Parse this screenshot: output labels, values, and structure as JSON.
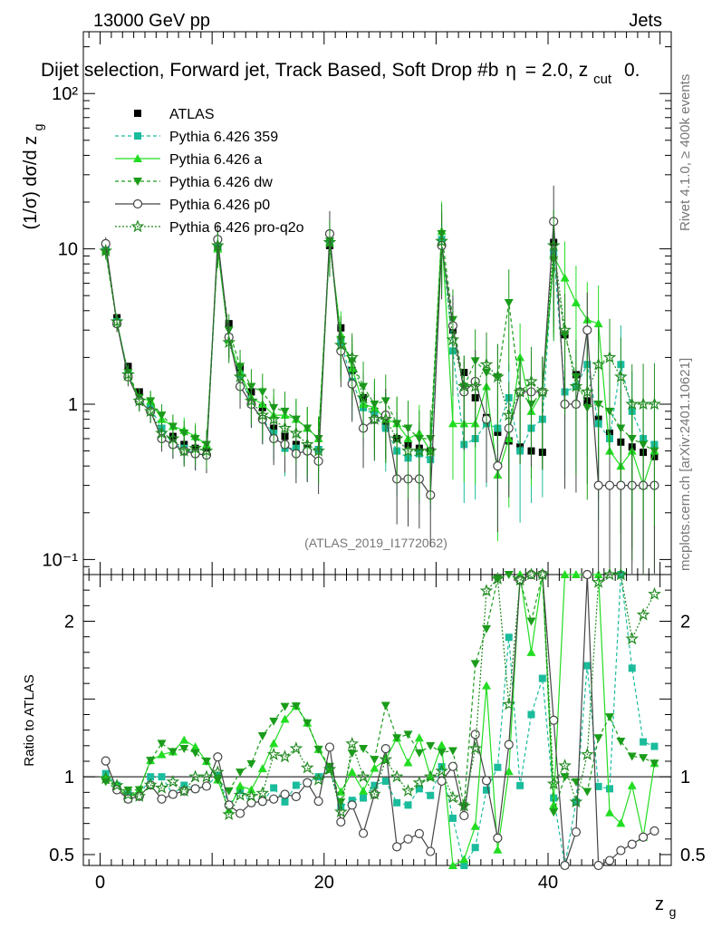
{
  "header": {
    "energy": "13000 GeV pp",
    "category": "Jets",
    "selection": "Dijet selection, Forward jet, Track Based, Soft Drop #b",
    "selection_tail": "= 2.0, z",
    "selection_sub": "cut",
    "selection_end": "0.",
    "rivet_label": "Rivet 4.1.0, ≥ 400k events",
    "mcplots_label": "mcplots.cern.ch [arXiv:2401.10621]",
    "analysis_id": "(ATLAS_2019_I1772062)"
  },
  "chart_data": {
    "type": "line",
    "title": "Dijet selection, Forward jet, Track Based, Soft Drop",
    "xlabel": "z",
    "xlabel_sub": "g",
    "ylabel": "(1/σ) dσ/d z",
    "ylabel_sub": "g",
    "ratio_ylabel": "Ratio to ATLAS",
    "xlim": [
      -1.5,
      51
    ],
    "ylim": [
      0.08,
      250
    ],
    "ratio_ylim": [
      0.43,
      2.3
    ],
    "yscale": "log",
    "x_ticks": [
      "0",
      "20",
      "40"
    ],
    "y_ticks": [
      "10⁻¹",
      "1",
      "10",
      "10²"
    ],
    "ratio_ticks": [
      "0.5",
      "1",
      "2"
    ],
    "x": [
      0.5,
      1.5,
      2.5,
      3.5,
      4.5,
      5.5,
      6.5,
      7.5,
      8.5,
      9.5,
      10.5,
      11.5,
      12.5,
      13.5,
      14.5,
      15.5,
      16.5,
      17.5,
      18.5,
      19.5,
      20.5,
      21.5,
      22.5,
      23.5,
      24.5,
      25.5,
      26.5,
      27.5,
      28.5,
      29.5,
      30.5,
      31.5,
      32.5,
      33.5,
      34.5,
      35.5,
      36.5,
      37.5,
      38.5,
      39.5,
      40.5,
      41.5,
      42.5,
      43.5,
      44.5,
      45.5,
      46.5,
      47.5,
      48.5,
      49.5
    ],
    "series": [
      {
        "name": "ATLAS",
        "color": "#000000",
        "values": [
          9.8,
          3.6,
          1.75,
          1.2,
          0.95,
          0.7,
          0.62,
          0.55,
          0.52,
          0.5,
          10.2,
          3.3,
          1.7,
          1.2,
          0.95,
          0.7,
          0.62,
          0.55,
          0.52,
          0.51,
          10.5,
          3.1,
          1.65,
          1.1,
          0.9,
          0.72,
          0.6,
          0.55,
          0.52,
          0.5,
          10.8,
          3.0,
          1.6,
          1.1,
          0.82,
          0.66,
          0.58,
          0.53,
          0.5,
          0.49,
          11.0,
          2.8,
          1.55,
          1.05,
          0.8,
          0.65,
          0.57,
          0.53,
          0.49,
          0.46
        ]
      },
      {
        "name": "Pythia 6.426 359",
        "color": "#1abc9c",
        "values": [
          10.0,
          3.4,
          1.55,
          1.05,
          0.95,
          0.7,
          0.55,
          0.52,
          0.48,
          0.47,
          10.3,
          2.7,
          1.55,
          1.0,
          0.8,
          0.65,
          0.52,
          0.52,
          0.5,
          0.51,
          11.0,
          2.5,
          1.4,
          0.95,
          0.85,
          0.7,
          0.5,
          0.45,
          0.48,
          0.44,
          11.5,
          2.2,
          0.55,
          0.6,
          0.75,
          0.7,
          1.1,
          0.5,
          0.7,
          0.8,
          9.5,
          1.2,
          1.3,
          1.8,
          0.75,
          0.6,
          1.8,
          0.9,
          0.6,
          0.55
        ]
      },
      {
        "name": "Pythia 6.426 a",
        "color": "#22dd22",
        "values": [
          9.8,
          3.4,
          1.5,
          1.1,
          1.05,
          0.8,
          0.72,
          0.68,
          0.62,
          0.55,
          10.0,
          2.6,
          1.6,
          1.1,
          1.0,
          0.85,
          0.85,
          0.8,
          0.7,
          0.6,
          11.0,
          2.8,
          1.7,
          1.0,
          0.95,
          0.8,
          0.75,
          0.6,
          0.65,
          0.5,
          13.0,
          0.75,
          0.75,
          0.75,
          1.3,
          0.35,
          0.6,
          2.0,
          0.9,
          1.2,
          9.0,
          6.5,
          4.5,
          3.5,
          3.3,
          0.5,
          0.4,
          0.5,
          0.3,
          0.5
        ]
      },
      {
        "name": "Pythia 6.426 dw",
        "color": "#1a9c1a",
        "values": [
          9.5,
          3.3,
          1.6,
          1.1,
          1.05,
          0.85,
          0.72,
          0.65,
          0.6,
          0.55,
          10.0,
          3.0,
          1.75,
          1.3,
          1.2,
          0.95,
          0.9,
          0.8,
          0.7,
          0.6,
          11.2,
          2.6,
          1.9,
          1.3,
          1.0,
          1.05,
          0.75,
          0.7,
          0.6,
          0.6,
          12.5,
          3.5,
          1.3,
          1.9,
          1.6,
          1.5,
          4.5,
          1.2,
          1.0,
          1.2,
          8.5,
          2.8,
          1.5,
          0.95,
          1.0,
          0.9,
          0.7,
          0.6,
          0.55,
          0.5
        ]
      },
      {
        "name": "Pythia 6.426 p0",
        "color": "#444444",
        "values": [
          10.8,
          3.3,
          1.5,
          1.05,
          0.9,
          0.6,
          0.55,
          0.5,
          0.48,
          0.47,
          11.5,
          2.7,
          1.3,
          1.0,
          0.8,
          0.6,
          0.55,
          0.48,
          0.5,
          0.43,
          12.5,
          2.2,
          1.35,
          0.7,
          0.8,
          0.85,
          0.33,
          0.33,
          0.33,
          0.26,
          10.5,
          3.2,
          1.2,
          1.4,
          0.8,
          0.4,
          0.7,
          1.2,
          1.2,
          1.2,
          15.0,
          1.0,
          1.0,
          3.0,
          0.3,
          0.3,
          0.3,
          0.3,
          0.3,
          0.3
        ]
      },
      {
        "name": "Pythia 6.426 pro-q2o",
        "color": "#228b22",
        "values": [
          9.7,
          3.4,
          1.55,
          1.05,
          0.9,
          0.65,
          0.6,
          0.5,
          0.52,
          0.5,
          10.5,
          2.5,
          1.5,
          1.05,
          0.85,
          0.8,
          0.7,
          0.65,
          0.55,
          0.5,
          11.0,
          2.4,
          2.0,
          1.1,
          0.8,
          0.8,
          0.6,
          0.5,
          0.5,
          0.5,
          11.2,
          2.6,
          1.3,
          1.3,
          1.8,
          1.5,
          0.85,
          1.2,
          1.4,
          1.2,
          10.5,
          3.0,
          1.3,
          1.2,
          1.8,
          2.0,
          1.5,
          1.0,
          1.0,
          1.0
        ]
      }
    ]
  }
}
